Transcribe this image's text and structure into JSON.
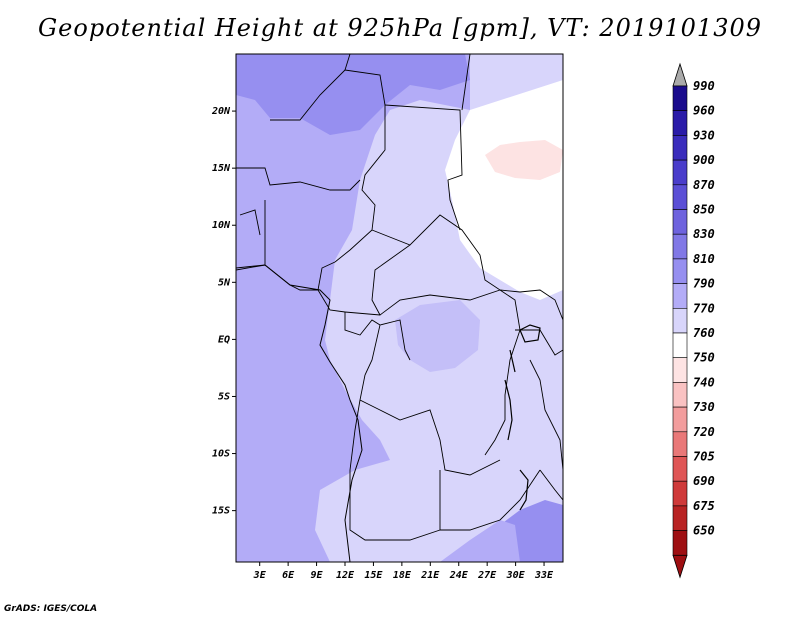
{
  "title": "Geopotential Height at 925hPa [gpm], VT: 2019101309",
  "credit": "GrADS: IGES/COLA",
  "map": {
    "lat_ticks": [
      "20N",
      "15N",
      "10N",
      "5N",
      "EQ",
      "5S",
      "10S",
      "15S"
    ],
    "lat_values": [
      20,
      15,
      10,
      5,
      0,
      -5,
      -10,
      -15
    ],
    "lon_ticks": [
      "3E",
      "6E",
      "9E",
      "12E",
      "15E",
      "18E",
      "21E",
      "24E",
      "27E",
      "30E",
      "33E"
    ],
    "lon_values": [
      3,
      6,
      9,
      12,
      15,
      18,
      21,
      24,
      27,
      30,
      33
    ],
    "lon_range": [
      0.5,
      35.0
    ],
    "lat_range": [
      -19.5,
      25.0
    ]
  },
  "colorbar": {
    "levels": [
      "990",
      "960",
      "930",
      "900",
      "870",
      "850",
      "830",
      "810",
      "790",
      "770",
      "760",
      "750",
      "740",
      "730",
      "720",
      "705",
      "690",
      "675",
      "650"
    ],
    "colors": [
      "#1a0b8c",
      "#2a1ba8",
      "#3a2cbc",
      "#4a3dcb",
      "#5b4fd6",
      "#6e63de",
      "#8178e6",
      "#968ff0",
      "#b3acf7",
      "#d8d5fb",
      "#ffffff",
      "#fde3e3",
      "#f9c2c2",
      "#f29d9d",
      "#e97878",
      "#df5656",
      "#cf3a3a",
      "#b82323",
      "#9e0f12"
    ],
    "top_arrow_color": "#aaaaaa",
    "bottom_arrow_color": "#9e0f12"
  },
  "fill_colors": {
    "ocean": "#b3acf7",
    "dark_north": "#968ff0",
    "land_low": "#d8d5fb",
    "white_zone": "#ffffff",
    "pink_spot": "#fde3e3",
    "southeast": "#968ff0"
  }
}
